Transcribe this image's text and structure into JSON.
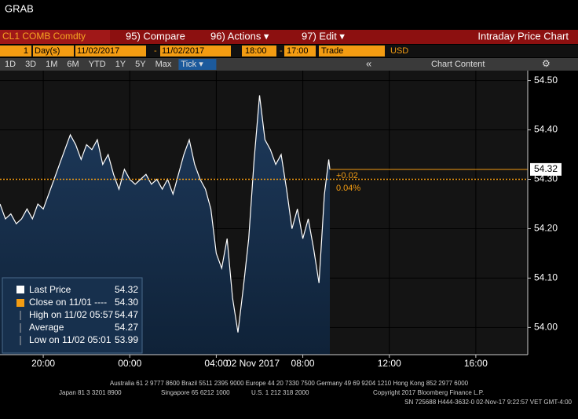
{
  "ui": {
    "title": "GRAB",
    "security": "CL1 COMB Comdty",
    "menu": [
      "95) Compare",
      "96) Actions ▾",
      "97) Edit ▾"
    ],
    "panel_title": "Intraday Price Chart",
    "range": {
      "count": "1",
      "unit": "Day(s)",
      "start_date": "11/02/2017",
      "dash": "-",
      "end_date": "11/02/2017",
      "start_time": "18:00",
      "dash2": "-",
      "end_time": "17:00",
      "event": "Trade",
      "currency": "USD"
    },
    "periods": [
      "1D",
      "3D",
      "1M",
      "6M",
      "YTD",
      "1Y",
      "5Y",
      "Max",
      "Tick ▾"
    ],
    "back": "«",
    "chart_content": "Chart Content",
    "settings": "⚙",
    "footer": [
      "Australia 61 2 9777 8600 Brazil 5511 2395 9000 Europe 44 20 7330 7500 Germany 49 69 9204 1210 Hong Kong 852 2977 6000",
      "Japan 81 3 3201 8900",
      "Singapore 65 6212 1000",
      "U.S. 1 212 318 2000",
      "Copyright 2017 Bloomberg Finance L.P.",
      "SN 725688 H444-3632-0 02-Nov-17  9:22:57 VET  GMT-4:00"
    ]
  },
  "chart_data": {
    "type": "line",
    "x": [
      0,
      0.25,
      0.5,
      0.75,
      1,
      1.25,
      1.5,
      1.75,
      2,
      2.25,
      2.5,
      2.75,
      3,
      3.25,
      3.5,
      3.75,
      4,
      4.25,
      4.5,
      4.75,
      5,
      5.25,
      5.5,
      5.75,
      6,
      6.25,
      6.5,
      6.75,
      7,
      7.25,
      7.5,
      7.75,
      8,
      8.25,
      8.5,
      8.75,
      9,
      9.25,
      9.5,
      9.75,
      10,
      10.25,
      10.5,
      10.75,
      11,
      11.25,
      11.5,
      11.75,
      12,
      12.25,
      12.5,
      12.75,
      13,
      13.25,
      13.5,
      13.75,
      14,
      14.25,
      14.5,
      14.75,
      15,
      15.2,
      15.25
    ],
    "series": [
      {
        "name": "Last Price",
        "color": "#ffffff",
        "values": [
          54.25,
          54.22,
          54.23,
          54.21,
          54.22,
          54.24,
          54.22,
          54.25,
          54.24,
          54.27,
          54.3,
          54.33,
          54.36,
          54.39,
          54.37,
          54.34,
          54.37,
          54.36,
          54.38,
          54.33,
          54.35,
          54.31,
          54.28,
          54.32,
          54.3,
          54.29,
          54.3,
          54.31,
          54.29,
          54.3,
          54.28,
          54.3,
          54.27,
          54.31,
          54.35,
          54.38,
          54.33,
          54.3,
          54.28,
          54.24,
          54.15,
          54.12,
          54.18,
          54.06,
          53.99,
          54.08,
          54.18,
          54.34,
          54.47,
          54.38,
          54.36,
          54.33,
          54.35,
          54.28,
          54.2,
          54.24,
          54.18,
          54.22,
          54.16,
          54.09,
          54.27,
          54.34,
          54.32
        ]
      }
    ],
    "xlim": [
      0,
      24.4
    ],
    "xticks": [
      {
        "value": 2,
        "label": "20:00"
      },
      {
        "value": 6,
        "label": "00:00"
      },
      {
        "value": 10,
        "label": "04:00"
      },
      {
        "value": 14,
        "label": "08:00"
      },
      {
        "value": 18,
        "label": "12:00"
      },
      {
        "value": 22,
        "label": "16:00"
      }
    ],
    "xlabel": "02 Nov 2017",
    "ylim": [
      53.945,
      54.52
    ],
    "yticks": [
      {
        "value": 54,
        "label": "54.00"
      },
      {
        "value": 54.1,
        "label": "54.10"
      },
      {
        "value": 54.2,
        "label": "54.20"
      },
      {
        "value": 54.3,
        "label": "54.30"
      },
      {
        "value": 54.4,
        "label": "54.40"
      },
      {
        "value": 54.5,
        "label": "54.50"
      }
    ],
    "grid": true,
    "reference_line": {
      "value": 54.3,
      "color": "#f39c12"
    },
    "last_label": "54.32",
    "change": "+0.02",
    "change_pct": "0.04%",
    "legend": [
      {
        "label": "Close on 11/01 ----",
        "value": "54.30"
      },
      {
        "label": "High on 11/02 05:57",
        "value": "54.47"
      },
      {
        "label": "Average",
        "value": "54.27"
      },
      {
        "label": "Low on 11/02 05:01",
        "value": "53.99"
      }
    ],
    "legend_first_value": "54.32"
  }
}
